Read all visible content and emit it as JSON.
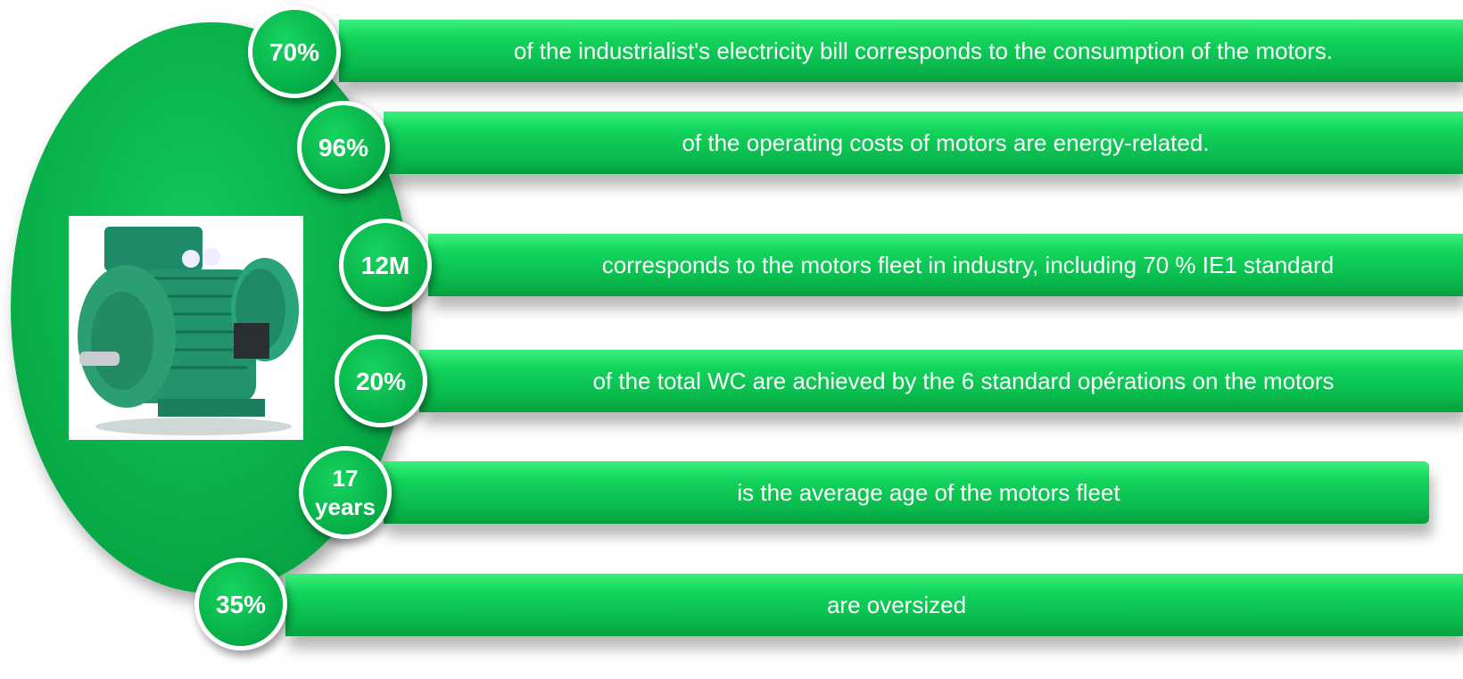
{
  "items": [
    {
      "badge": "70%",
      "text": "of the industrialist's electricity bill corresponds to the consumption of the motors."
    },
    {
      "badge": "96%",
      "text": "of the operating costs of motors are energy-related."
    },
    {
      "badge": "12M",
      "text": "corresponds to the motors fleet in industry, including 70 % IE1 standard"
    },
    {
      "badge": "20%",
      "text": "of the total WC are achieved by the 6 standard opérations on the motors"
    },
    {
      "badge": "17 years",
      "text": "is the average age of the motors fleet"
    },
    {
      "badge": "35%",
      "text": "are oversized"
    }
  ]
}
